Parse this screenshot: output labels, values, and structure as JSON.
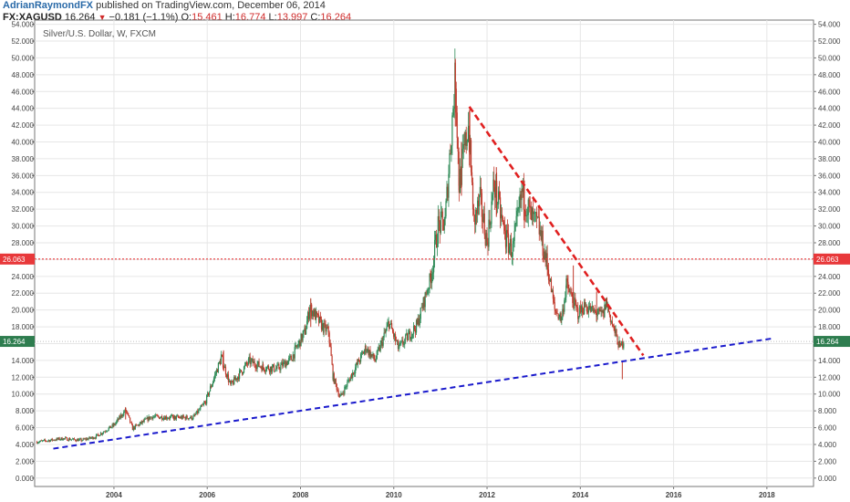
{
  "header": {
    "author": "AdrianRaymondFX",
    "published": "published on TradingView.com, December 06, 2014",
    "symbol": "FX:XAGUSD",
    "last": "16.264",
    "change": "−0.181 (−1.1%)",
    "open_label": "O:",
    "open": "15.461",
    "high_label": "H:",
    "high": "16.774",
    "low_label": "L:",
    "low": "13.997",
    "close_label": "C:",
    "close": "16.264"
  },
  "colors": {
    "up": "#2e8b57",
    "down": "#c0392b",
    "resistance": "#e8383a",
    "support_line": "#1a1acc",
    "downtrend_line": "#e02020",
    "price_badge": "#2e7d4f",
    "grid": "#e6e6e6"
  },
  "chart_data": {
    "type": "candlestick",
    "title": "Silver/U.S. Dollar, W, FXCM",
    "timeframe": "W",
    "x_range": [
      2002.3,
      2019.0
    ],
    "y_range": [
      -1.0,
      54.5
    ],
    "y_ticks": [
      0,
      2,
      4,
      6,
      8,
      10,
      12,
      14,
      16,
      18,
      20,
      22,
      24,
      26,
      28,
      30,
      32,
      34,
      36,
      38,
      40,
      42,
      44,
      46,
      48,
      50,
      52,
      54
    ],
    "y_tick_labels": [
      "0.000",
      "2.000",
      "4.000",
      "6.000",
      "8.000",
      "10.000",
      "12.000",
      "14.000",
      "16.000",
      "18.000",
      "20.000",
      "22.000",
      "24.000",
      "26.000",
      "28.000",
      "30.000",
      "32.000",
      "34.000",
      "36.000",
      "38.000",
      "40.000",
      "42.000",
      "44.000",
      "46.000",
      "48.000",
      "50.000",
      "52.000",
      "54.000"
    ],
    "x_ticks": [
      2004,
      2006,
      2008,
      2010,
      2012,
      2014,
      2016,
      2018
    ],
    "x_tick_labels": [
      "2004",
      "2006",
      "2008",
      "2010",
      "2012",
      "2014",
      "2016",
      "2018"
    ],
    "price_anchors": [
      [
        2002.35,
        4.3
      ],
      [
        2002.9,
        4.7
      ],
      [
        2003.3,
        4.5
      ],
      [
        2003.6,
        4.9
      ],
      [
        2004.0,
        6.3
      ],
      [
        2004.25,
        8.1
      ],
      [
        2004.4,
        5.9
      ],
      [
        2004.8,
        7.3
      ],
      [
        2005.3,
        7.2
      ],
      [
        2005.7,
        7.2
      ],
      [
        2005.95,
        8.9
      ],
      [
        2006.3,
        14.3
      ],
      [
        2006.5,
        11.0
      ],
      [
        2006.9,
        13.9
      ],
      [
        2007.2,
        13.2
      ],
      [
        2007.5,
        13.0
      ],
      [
        2007.8,
        14.2
      ],
      [
        2008.1,
        17.5
      ],
      [
        2008.2,
        20.3
      ],
      [
        2008.5,
        17.8
      ],
      [
        2008.6,
        17.5
      ],
      [
        2008.7,
        12.0
      ],
      [
        2008.85,
        9.6
      ],
      [
        2009.1,
        12.3
      ],
      [
        2009.4,
        15.5
      ],
      [
        2009.6,
        14.0
      ],
      [
        2009.9,
        18.5
      ],
      [
        2010.1,
        15.4
      ],
      [
        2010.5,
        18.2
      ],
      [
        2010.8,
        24.0
      ],
      [
        2010.95,
        30.0
      ],
      [
        2011.1,
        30.5
      ],
      [
        2011.32,
        48.0
      ],
      [
        2011.4,
        35.0
      ],
      [
        2011.6,
        42.0
      ],
      [
        2011.72,
        30.5
      ],
      [
        2011.85,
        33.0
      ],
      [
        2012.0,
        28.0
      ],
      [
        2012.15,
        35.0
      ],
      [
        2012.4,
        28.5
      ],
      [
        2012.55,
        27.0
      ],
      [
        2012.75,
        34.0
      ],
      [
        2012.95,
        31.0
      ],
      [
        2013.1,
        30.0
      ],
      [
        2013.3,
        25.0
      ],
      [
        2013.45,
        20.0
      ],
      [
        2013.6,
        19.0
      ],
      [
        2013.7,
        23.0
      ],
      [
        2013.95,
        19.6
      ],
      [
        2014.1,
        20.5
      ],
      [
        2014.35,
        19.5
      ],
      [
        2014.5,
        19.5
      ],
      [
        2014.55,
        21.0
      ],
      [
        2014.7,
        18.0
      ],
      [
        2014.85,
        15.5
      ],
      [
        2014.93,
        16.26
      ]
    ],
    "spikes": [
      [
        2011.32,
        49.8
      ],
      [
        2008.22,
        21.4
      ],
      [
        2006.35,
        15.2
      ],
      [
        2004.25,
        8.3
      ],
      [
        2011.63,
        44.0
      ],
      [
        2011.45,
        40.0
      ],
      [
        2012.2,
        37.0
      ],
      [
        2012.8,
        35.4
      ],
      [
        2013.85,
        25.3
      ],
      [
        2014.35,
        22.2
      ],
      [
        2014.9,
        14.0
      ]
    ],
    "lines": [
      {
        "name": "resistance_level",
        "type": "horizontal",
        "y": 26.063,
        "style": "dotted",
        "label": "26.063"
      },
      {
        "name": "downtrend",
        "type": "trendline",
        "points": [
          [
            2011.62,
            44.2
          ],
          [
            2015.35,
            14.6
          ]
        ],
        "style": "dashed"
      },
      {
        "name": "support_trend",
        "type": "trendline",
        "points": [
          [
            2002.7,
            3.5
          ],
          [
            2018.1,
            16.6
          ]
        ],
        "style": "dashed"
      },
      {
        "name": "last_price",
        "type": "horizontal",
        "y": 16.264,
        "style": "dotted",
        "label": "16.264"
      }
    ],
    "resistance_label": "26.063",
    "last_price_label": "16.264"
  }
}
